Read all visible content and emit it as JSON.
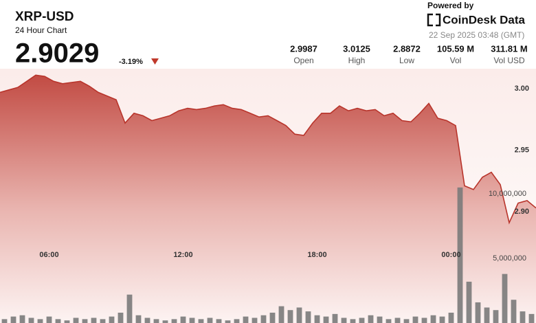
{
  "header": {
    "title": "XRP-USD",
    "subtitle": "24 Hour Chart",
    "price": "2.9029",
    "change": "-3.19%",
    "powered_by": "Powered by",
    "brand": "CoinDesk Data",
    "timestamp": "22 Sep 2025 03:48 (GMT)",
    "stats": [
      {
        "value": "2.9987",
        "label": "Open"
      },
      {
        "value": "3.0125",
        "label": "High"
      },
      {
        "value": "2.8872",
        "label": "Low"
      },
      {
        "value": "105.59 M",
        "label": "Vol"
      },
      {
        "value": "311.81 M",
        "label": "Vol USD"
      }
    ]
  },
  "chart_data": {
    "type": "line",
    "x": [
      0,
      0.4,
      0.8,
      1.2,
      1.6,
      2.0,
      2.4,
      2.8,
      3.2,
      3.6,
      4.0,
      4.4,
      4.8,
      5.2,
      5.6,
      6.0,
      6.4,
      6.8,
      7.2,
      7.6,
      8.0,
      8.4,
      8.8,
      9.2,
      9.6,
      10.0,
      10.4,
      10.8,
      11.2,
      11.6,
      12.0,
      12.4,
      12.8,
      13.2,
      13.6,
      14.0,
      14.4,
      14.8,
      15.2,
      15.6,
      16.0,
      16.4,
      16.8,
      17.2,
      17.6,
      18.0,
      18.4,
      18.8,
      19.2,
      19.6,
      20.0,
      20.4,
      20.8,
      21.2,
      21.6,
      22.0,
      22.4,
      22.8,
      23.2,
      23.6,
      24.0
    ],
    "xlim": [
      0,
      24
    ],
    "xticks": [
      {
        "value": 2.2,
        "label": "06:00"
      },
      {
        "value": 8.2,
        "label": "12:00"
      },
      {
        "value": 14.2,
        "label": "18:00"
      },
      {
        "value": 20.2,
        "label": "00:00"
      }
    ],
    "ylim": [
      2.8095,
      3.0162
    ],
    "yticks": [
      {
        "value": 2.9,
        "label": "2.90"
      },
      2.95,
      {
        "value": 3.0,
        "label": "3.00"
      }
    ],
    "y2lim": [
      0,
      19700000
    ],
    "y2ticks": [
      {
        "value": 5000000,
        "label": "5,000,000"
      },
      {
        "value": 10000000,
        "label": "10,000,000"
      }
    ],
    "series": [
      {
        "color": "#b8342b",
        "values": [
          2.997,
          2.999,
          3.001,
          3.006,
          3.011,
          3.01,
          3.006,
          3.004,
          3.005,
          3.006,
          3.002,
          2.997,
          2.994,
          2.991,
          2.972,
          2.98,
          2.978,
          2.974,
          2.976,
          2.978,
          2.982,
          2.984,
          2.983,
          2.984,
          2.986,
          2.987,
          2.984,
          2.983,
          2.98,
          2.977,
          2.978,
          2.974,
          2.97,
          2.963,
          2.962,
          2.972,
          2.98,
          2.98,
          2.986,
          2.982,
          2.984,
          2.982,
          2.983,
          2.978,
          2.98,
          2.974,
          2.973,
          2.98,
          2.988,
          2.976,
          2.974,
          2.97,
          2.921,
          2.918,
          2.928,
          2.932,
          2.922,
          2.891,
          2.907,
          2.909,
          2.903
        ]
      },
      {
        "type": "bar",
        "axis": "y2",
        "color": "#7a7a7a",
        "x": [
          0.2,
          0.6,
          1.0,
          1.4,
          1.8,
          2.2,
          2.6,
          3.0,
          3.4,
          3.8,
          4.2,
          4.6,
          5.0,
          5.4,
          5.8,
          6.2,
          6.6,
          7.0,
          7.4,
          7.8,
          8.2,
          8.6,
          9.0,
          9.4,
          9.8,
          10.2,
          10.6,
          11.0,
          11.4,
          11.8,
          12.2,
          12.6,
          13.0,
          13.4,
          13.8,
          14.2,
          14.6,
          15.0,
          15.4,
          15.8,
          16.2,
          16.6,
          17.0,
          17.4,
          17.8,
          18.2,
          18.6,
          19.0,
          19.4,
          19.8,
          20.2,
          20.6,
          21.0,
          21.4,
          21.8,
          22.2,
          22.6,
          23.0,
          23.4,
          23.8
        ],
        "values": [
          300000,
          500000,
          600000,
          400000,
          300000,
          500000,
          300000,
          200000,
          400000,
          300000,
          400000,
          300000,
          500000,
          800000,
          2200000,
          600000,
          400000,
          300000,
          200000,
          300000,
          500000,
          400000,
          300000,
          400000,
          300000,
          200000,
          300000,
          500000,
          400000,
          600000,
          800000,
          1300000,
          1000000,
          1200000,
          900000,
          600000,
          500000,
          700000,
          400000,
          300000,
          400000,
          600000,
          500000,
          300000,
          400000,
          300000,
          500000,
          400000,
          600000,
          500000,
          800000,
          10500000,
          3200000,
          1600000,
          1200000,
          1000000,
          3800000,
          1800000,
          900000,
          700000
        ]
      }
    ]
  }
}
